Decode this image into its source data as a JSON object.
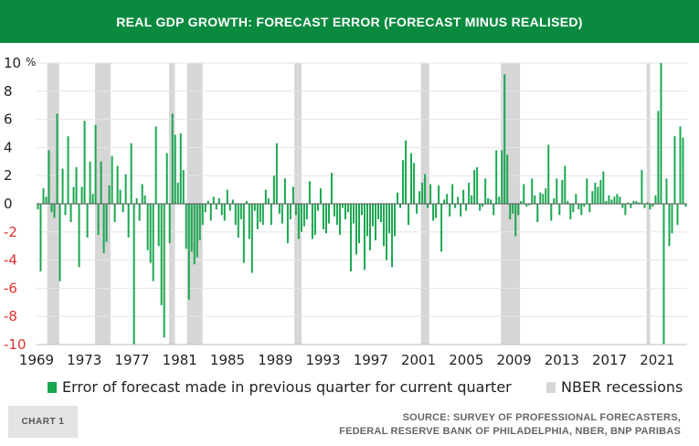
{
  "header": {
    "title": "REAL GDP GROWTH: FORECAST ERROR (FORECAST MINUS REALISED)"
  },
  "footer": {
    "badge": "CHART 1",
    "source_line1": "SOURCE: SURVEY OF PROFESSIONAL FORECASTERS,",
    "source_line2": "FEDERAL RESERVE BANK OF PHILADELPHIA, NBER, BNP PARIBAS"
  },
  "legend": {
    "series_label": "Error of forecast made in previous quarter for current quarter",
    "recession_label": "NBER recessions"
  },
  "colors": {
    "bar": "#1aa64f",
    "recession": "#d6d6d6",
    "header": "#0a8a3f",
    "negative_tick": "#e03030"
  },
  "chart_data": {
    "type": "bar",
    "ylabel": "%",
    "ylim": [
      -10,
      10
    ],
    "yticks": [
      10,
      8,
      6,
      4,
      2,
      0,
      -2,
      -4,
      -6,
      -8,
      -10
    ],
    "xlim": [
      1969.0,
      2023.5
    ],
    "xticks": [
      1969,
      1973,
      1977,
      1981,
      1985,
      1989,
      1993,
      1997,
      2001,
      2005,
      2009,
      2013,
      2017,
      2021
    ],
    "recessions": [
      [
        1969.9,
        1970.9
      ],
      [
        1973.9,
        1975.2
      ],
      [
        1980.1,
        1980.6
      ],
      [
        1981.6,
        1982.9
      ],
      [
        1990.6,
        1991.2
      ],
      [
        2001.2,
        2001.9
      ],
      [
        2007.9,
        2009.5
      ],
      [
        2020.1,
        2020.4
      ]
    ],
    "series": [
      {
        "values": [
          -0.4,
          -4.8,
          1.1,
          0.5,
          3.8,
          -0.6,
          -1.0,
          6.4,
          -5.5,
          2.5,
          -0.8,
          4.8,
          -1.3,
          1.2,
          2.6,
          -4.5,
          1.2,
          5.9,
          -2.4,
          3.0,
          0.7,
          5.6,
          -2.2,
          3.0,
          -3.5,
          -2.7,
          1.3,
          3.4,
          -1.3,
          2.7,
          1.0,
          -0.6,
          2.1,
          -2.4,
          4.3,
          -10.0,
          0.4,
          -1.2,
          1.4,
          0.6,
          -3.3,
          -4.2,
          -5.5,
          5.5,
          -3.0,
          -7.2,
          -9.5,
          3.6,
          -2.8,
          6.4,
          4.9,
          1.5,
          5.0,
          2.4,
          -3.2,
          -6.8,
          -3.4,
          -4.3,
          -3.8,
          -2.6,
          -1.5,
          -0.6,
          0.2,
          -1.2,
          0.5,
          -0.4,
          0.4,
          -0.8,
          -1.2,
          1.0,
          -0.5,
          0.3,
          -1.5,
          -2.4,
          -1.1,
          -4.2,
          0.2,
          -2.5,
          -4.9,
          -0.5,
          -1.8,
          -1.3,
          -1.5,
          1.0,
          0.4,
          -1.5,
          2.0,
          4.3,
          -0.7,
          -1.4,
          1.8,
          -2.8,
          -1.1,
          1.2,
          -0.8,
          -2.5,
          -2.0,
          -1.6,
          -1.1,
          1.6,
          -2.5,
          -2.2,
          -0.5,
          1.1,
          -1.8,
          -2.1,
          -1.4,
          2.2,
          -0.9,
          -1.5,
          -2.2,
          -0.3,
          -1.1,
          -0.6,
          -4.8,
          -1.4,
          -3.6,
          -2.8,
          -0.8,
          -4.7,
          -2.3,
          -3.3,
          -1.6,
          -2.6,
          -1.1,
          -1.3,
          -3.0,
          -4.0,
          -2.1,
          -4.5,
          -2.3,
          0.8,
          -0.3,
          3.1,
          4.5,
          -1.5,
          3.6,
          2.9,
          -0.7,
          0.9,
          1.5,
          2.1,
          -0.3,
          1.4,
          -1.2,
          -1.0,
          1.3,
          -3.4,
          0.3,
          0.7,
          -0.9,
          1.4,
          -0.3,
          0.5,
          -0.9,
          1.0,
          -0.5,
          1.5,
          0.6,
          2.4,
          2.6,
          -0.5,
          -0.2,
          1.8,
          0.4,
          0.3,
          -0.8,
          3.8,
          0.5,
          3.8,
          9.2,
          3.5,
          -1.1,
          -0.7,
          -2.3,
          -0.8,
          0.2,
          1.4,
          -0.2,
          -0.1,
          1.8,
          0.6,
          -1.3,
          0.8,
          0.7,
          1.1,
          4.2,
          -1.2,
          0.4,
          1.8,
          -0.8,
          1.7,
          2.7,
          0.2,
          -1.1,
          -0.6,
          0.7,
          -0.4,
          -0.8,
          -0.2,
          1.8,
          -0.6,
          0.9,
          1.5,
          1.2,
          1.7,
          2.3,
          0.2,
          0.6,
          0.3,
          0.5,
          0.7,
          0.5,
          -0.3,
          -0.8,
          0.1,
          -0.3,
          0.2,
          0.2,
          0.1,
          2.4,
          -0.3,
          0.1,
          -0.4,
          -0.2,
          0.6,
          6.6,
          10.0,
          -10.0,
          1.8,
          -3.0,
          -2.1,
          4.8,
          -1.5,
          5.5,
          4.7,
          -0.2
        ]
      }
    ]
  }
}
